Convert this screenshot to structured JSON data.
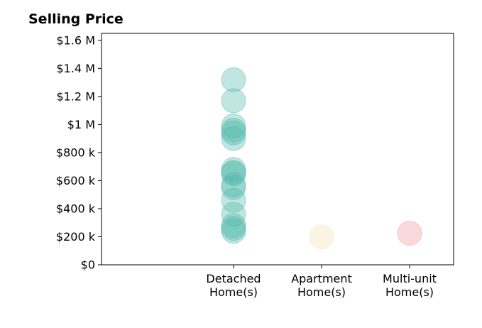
{
  "chart_data": {
    "type": "scatter",
    "title": "Selling Price",
    "xlabel": "",
    "ylabel": "",
    "categories": [
      [
        "Detached",
        "Home(s)"
      ],
      [
        "Apartment",
        "Home(s)"
      ],
      [
        "Multi-unit",
        "Home(s)"
      ]
    ],
    "xlim": [
      -0.5,
      3.5
    ],
    "ylim": [
      0,
      1650000
    ],
    "y_ticks": [
      0,
      200000,
      400000,
      600000,
      800000,
      1000000,
      1200000,
      1400000,
      1600000
    ],
    "y_tick_labels": [
      "$0",
      "$200 k",
      "$400 k",
      "$600 k",
      "$800 k",
      "$1 M",
      "$1.2 M",
      "$1.4 M",
      "$1.6 M"
    ],
    "grid": false,
    "legend": "none",
    "series": [
      {
        "category_index": 0,
        "color": "#4db6a9",
        "values": [
          1320000,
          1170000,
          990000,
          960000,
          940000,
          900000,
          680000,
          660000,
          650000,
          570000,
          550000,
          460000,
          360000,
          280000,
          260000,
          240000
        ]
      },
      {
        "category_index": 1,
        "color": "#f5dfb0",
        "values": [
          200000
        ]
      },
      {
        "category_index": 2,
        "color": "#f28e9b",
        "values": [
          225000
        ]
      }
    ]
  }
}
